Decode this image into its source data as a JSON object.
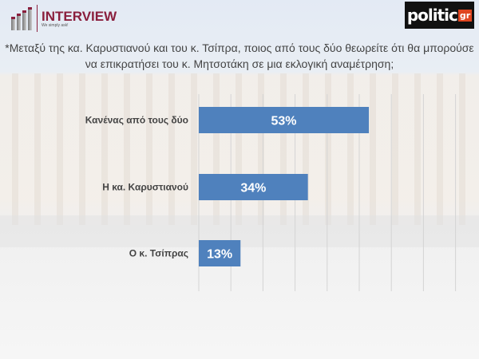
{
  "brand": {
    "name": "INTERVIEW",
    "tagline": "We simply ask!",
    "partner": "politic",
    "partner_suffix": "gr"
  },
  "chart_data": {
    "type": "bar",
    "orientation": "horizontal",
    "title": "*Μεταξύ της κα. Καρυστιανού και του κ. Τσίπρα, ποιος από τους δύο θεωρείτε ότι θα μπορούσε να επικρατήσει του κ. Μητσοτάκη σε μια εκλογική αναμέτρηση;",
    "categories": [
      "Κανένας από τους δύο",
      "Η κα. Καρυστιανού",
      "Ο κ. Τσίπρας"
    ],
    "values": [
      53,
      34,
      13
    ],
    "data_labels": [
      "53%",
      "34%",
      "13%"
    ],
    "xlim": [
      0,
      80
    ],
    "grid": true,
    "bar_color": "#4f81bd"
  }
}
